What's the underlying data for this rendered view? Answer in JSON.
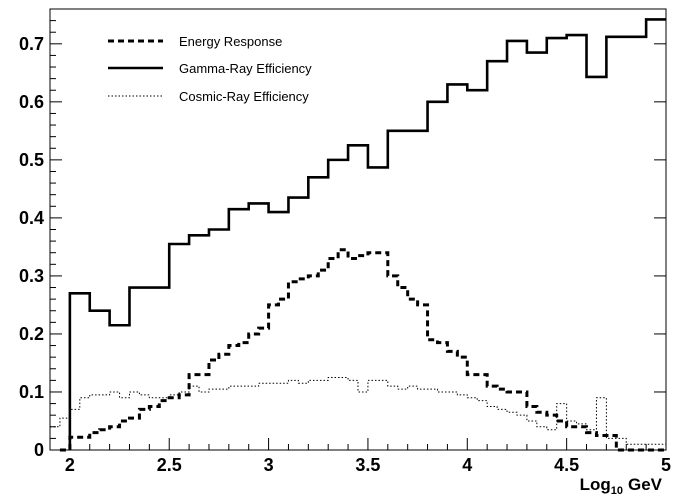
{
  "chart_data": {
    "type": "line",
    "style": "step",
    "title": "",
    "xlabel": "Log10 GeV",
    "xlabel_parts": {
      "main": "Log",
      "sub": "10",
      "unit": "GeV"
    },
    "ylabel": "",
    "xlim": [
      1.9,
      5.0
    ],
    "ylim": [
      0,
      0.76
    ],
    "x_ticks": [
      "2",
      "2.5",
      "3",
      "3.5",
      "4",
      "4.5",
      "5"
    ],
    "x_tick_values": [
      2,
      2.5,
      3,
      3.5,
      4,
      4.5,
      5
    ],
    "y_ticks": [
      "0",
      "0.1",
      "0.2",
      "0.3",
      "0.4",
      "0.5",
      "0.6",
      "0.7"
    ],
    "y_tick_values": [
      0,
      0.1,
      0.2,
      0.3,
      0.4,
      0.5,
      0.6,
      0.7
    ],
    "grid": false,
    "legend_position": "top-left",
    "bin_edges": [
      1.9,
      1.95,
      2.0,
      2.05,
      2.1,
      2.15,
      2.2,
      2.25,
      2.3,
      2.35,
      2.4,
      2.45,
      2.5,
      2.55,
      2.6,
      2.65,
      2.7,
      2.75,
      2.8,
      2.85,
      2.9,
      2.95,
      3.0,
      3.05,
      3.1,
      3.15,
      3.2,
      3.25,
      3.3,
      3.35,
      3.4,
      3.45,
      3.5,
      3.55,
      3.6,
      3.65,
      3.7,
      3.75,
      3.8,
      3.85,
      3.9,
      3.95,
      4.0,
      4.05,
      4.1,
      4.15,
      4.2,
      4.25,
      4.3,
      4.35,
      4.4,
      4.45,
      4.5,
      4.55,
      4.6,
      4.65,
      4.7,
      4.75,
      4.8,
      4.85,
      4.9,
      4.95,
      5.0
    ],
    "series": [
      {
        "name": "Energy Response",
        "style": "dashed",
        "x_start": 1.95,
        "x_end": 5.0,
        "values": [
          0.0,
          0.022,
          0.022,
          0.03,
          0.035,
          0.04,
          0.05,
          0.055,
          0.07,
          0.075,
          0.085,
          0.09,
          0.095,
          0.13,
          0.13,
          0.155,
          0.165,
          0.18,
          0.185,
          0.2,
          0.21,
          0.25,
          0.26,
          0.29,
          0.295,
          0.3,
          0.31,
          0.33,
          0.345,
          0.33,
          0.335,
          0.34,
          0.34,
          0.3,
          0.28,
          0.26,
          0.25,
          0.19,
          0.185,
          0.17,
          0.16,
          0.13,
          0.13,
          0.11,
          0.105,
          0.1,
          0.1,
          0.075,
          0.065,
          0.06,
          0.05,
          0.04,
          0.04,
          0.03,
          0.025,
          0.025,
          0.0,
          0.0,
          0.0,
          0.0,
          0.0
        ]
      },
      {
        "name": "Gamma-Ray Efficiency",
        "style": "solid",
        "x_start": 2.0,
        "x_end": 5.0,
        "values": [
          0.27,
          0.27,
          0.24,
          0.24,
          0.215,
          0.215,
          0.28,
          0.28,
          0.28,
          0.28,
          0.355,
          0.355,
          0.37,
          0.37,
          0.38,
          0.38,
          0.415,
          0.415,
          0.425,
          0.425,
          0.41,
          0.41,
          0.435,
          0.435,
          0.47,
          0.47,
          0.5,
          0.5,
          0.525,
          0.525,
          0.487,
          0.487,
          0.55,
          0.55,
          0.55,
          0.55,
          0.6,
          0.6,
          0.63,
          0.63,
          0.62,
          0.62,
          0.67,
          0.67,
          0.705,
          0.705,
          0.685,
          0.685,
          0.71,
          0.71,
          0.715,
          0.715,
          0.643,
          0.643,
          0.712,
          0.712,
          0.712,
          0.712,
          0.742,
          0.742
        ]
      },
      {
        "name": "Cosmic-Ray Efficiency",
        "style": "dotted",
        "x_start": 1.9,
        "x_end": 5.0,
        "values": [
          0.04,
          0.055,
          0.07,
          0.09,
          0.095,
          0.095,
          0.1,
          0.09,
          0.1,
          0.095,
          0.09,
          0.09,
          0.095,
          0.1,
          0.11,
          0.1,
          0.105,
          0.105,
          0.11,
          0.11,
          0.11,
          0.115,
          0.115,
          0.115,
          0.12,
          0.115,
          0.12,
          0.12,
          0.125,
          0.125,
          0.12,
          0.1,
          0.12,
          0.12,
          0.11,
          0.105,
          0.11,
          0.105,
          0.105,
          0.1,
          0.1,
          0.095,
          0.09,
          0.085,
          0.075,
          0.07,
          0.065,
          0.06,
          0.05,
          0.04,
          0.035,
          0.08,
          0.05,
          0.045,
          0.035,
          0.09,
          0.02,
          0.02,
          0.01,
          0.01,
          0.01,
          0.01
        ]
      }
    ]
  }
}
